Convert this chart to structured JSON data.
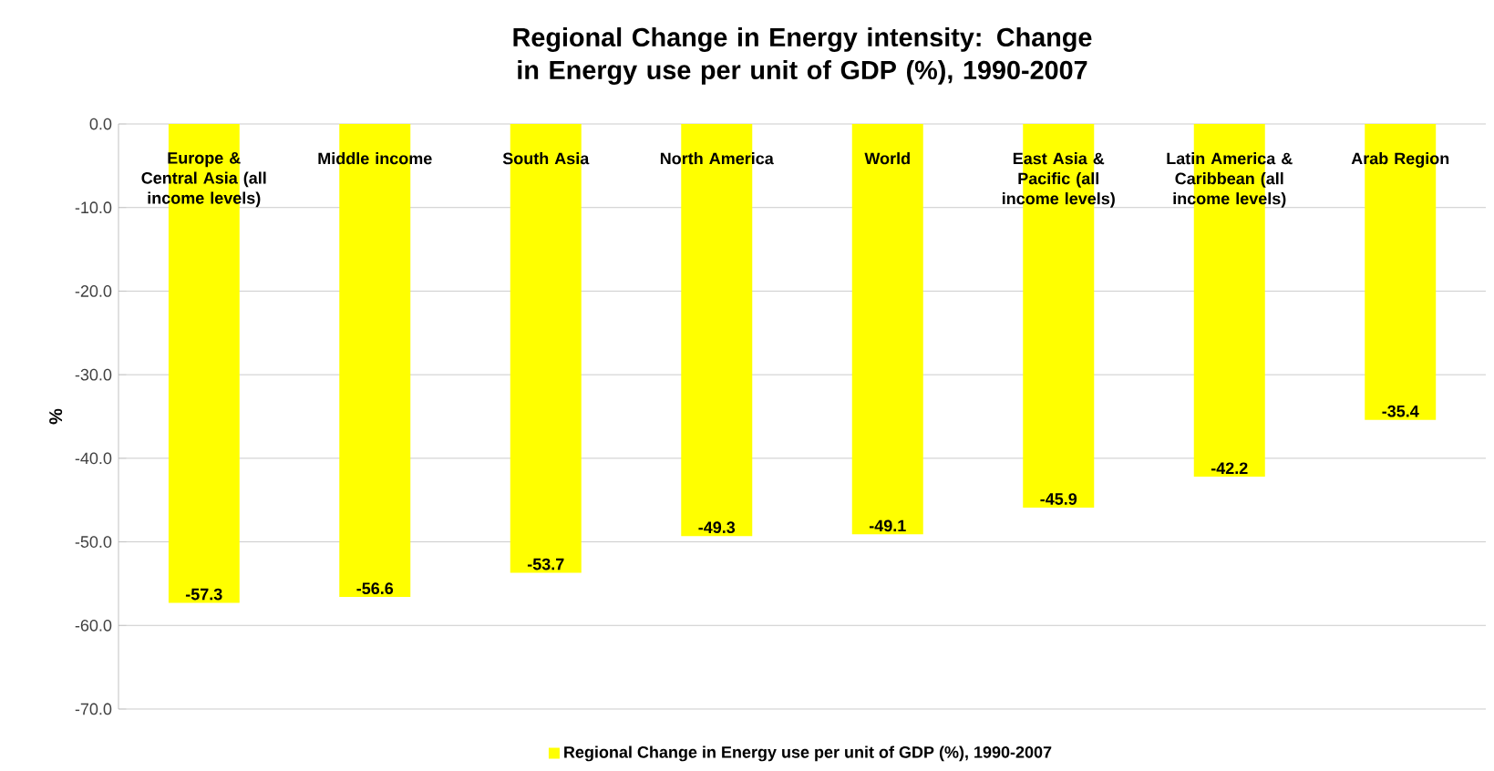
{
  "chart_data": {
    "type": "bar",
    "title": "Regional Change in Energy intensity: Change in Energy use per unit of GDP (%), 1990-2007",
    "categories": [
      "Europe & Central Asia (all income levels)",
      "Middle income",
      "South Asia",
      "North America",
      "World",
      "East Asia & Pacific (all income levels)",
      "Latin America & Caribbean (all income levels)",
      "Arab Region"
    ],
    "series": [
      {
        "name": "Regional Change in Energy use per unit of GDP (%), 1990-2007",
        "color": "#ffff00",
        "values": [
          -57.3,
          -56.6,
          -53.7,
          -49.3,
          -49.1,
          -45.9,
          -42.2,
          -35.4
        ]
      }
    ],
    "ylabel": "%",
    "ylim": [
      -70,
      0
    ],
    "yticks": [
      {
        "value": 0,
        "label": "0.0"
      },
      {
        "value": -10,
        "label": "-10.0"
      },
      {
        "value": -20,
        "label": "-20.0"
      },
      {
        "value": -30,
        "label": "-30.0"
      },
      {
        "value": -40,
        "label": "-40.0"
      },
      {
        "value": -50,
        "label": "-50.0"
      },
      {
        "value": -60,
        "label": "-60.0"
      },
      {
        "value": -70,
        "label": "-70.0"
      }
    ],
    "grid": "y",
    "legend": "bottom",
    "data_labels": true
  }
}
